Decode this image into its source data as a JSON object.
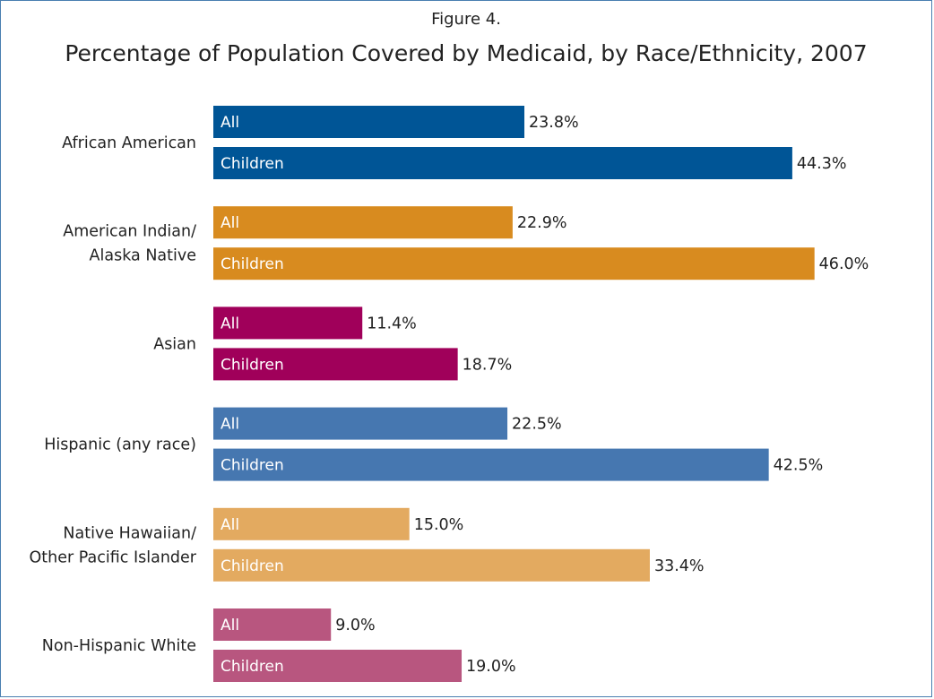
{
  "figure_label": "Figure 4.",
  "chart_data": {
    "type": "bar",
    "orientation": "horizontal",
    "title": "Percentage of Population Covered by Medicaid, by Race/Ethnicity, 2007",
    "categories": [
      {
        "label": [
          "African American"
        ],
        "color": "#005596",
        "values": [
          {
            "name": "All",
            "value": 23.8,
            "text": "23.8%"
          },
          {
            "name": "Children",
            "value": 44.3,
            "text": "44.3%"
          }
        ]
      },
      {
        "label": [
          "American Indian/",
          "Alaska Native"
        ],
        "color": "#d88b1f",
        "values": [
          {
            "name": "All",
            "value": 22.9,
            "text": "22.9%"
          },
          {
            "name": "Children",
            "value": 46.0,
            "text": "46.0%"
          }
        ]
      },
      {
        "label": [
          "Asian"
        ],
        "color": "#a0005a",
        "values": [
          {
            "name": "All",
            "value": 11.4,
            "text": "11.4%"
          },
          {
            "name": "Children",
            "value": 18.7,
            "text": "18.7%"
          }
        ]
      },
      {
        "label": [
          "Hispanic (any race)"
        ],
        "color": "#4677b0",
        "values": [
          {
            "name": "All",
            "value": 22.5,
            "text": "22.5%"
          },
          {
            "name": "Children",
            "value": 42.5,
            "text": "42.5%"
          }
        ]
      },
      {
        "label": [
          "Native Hawaiian/",
          "Other Pacific Islander"
        ],
        "color": "#e3aa60",
        "values": [
          {
            "name": "All",
            "value": 15.0,
            "text": "15.0%"
          },
          {
            "name": "Children",
            "value": 33.4,
            "text": "33.4%"
          }
        ]
      },
      {
        "label": [
          "Non-Hispanic White"
        ],
        "color": "#b8567f",
        "values": [
          {
            "name": "All",
            "value": 9.0,
            "text": "9.0%"
          },
          {
            "name": "Children",
            "value": 19.0,
            "text": "19.0%"
          }
        ]
      }
    ],
    "xlim": [
      0,
      50
    ],
    "grid": false,
    "legend": "none"
  }
}
